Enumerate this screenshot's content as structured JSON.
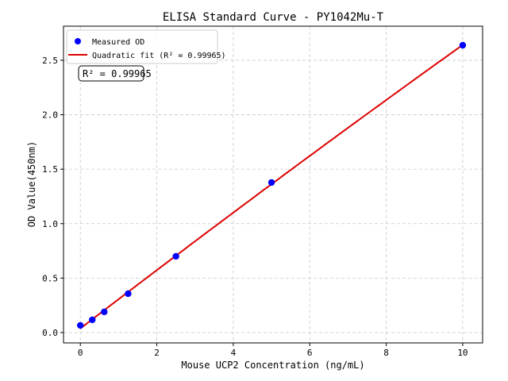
{
  "chart_data": {
    "type": "scatter",
    "title": "ELISA Standard Curve - PY1042Mu-T",
    "xlabel": "Mouse UCP2 Concentration (ng/mL)",
    "ylabel": "OD Value(450nm)",
    "xlim": [
      -0.44,
      10.52
    ],
    "ylim": [
      -0.095,
      2.813
    ],
    "xticks": [
      0,
      2,
      4,
      6,
      8,
      10
    ],
    "xtick_labels": [
      "0",
      "2",
      "4",
      "6",
      "8",
      "10"
    ],
    "yticks": [
      0,
      0.5,
      1.0,
      1.5,
      2.0,
      2.5
    ],
    "ytick_labels": [
      "0.0",
      "0.5",
      "1.0",
      "1.5",
      "2.0",
      "2.5"
    ],
    "grid": true,
    "legend_position": "top-left",
    "series": [
      {
        "name": "Measured OD",
        "kind": "points",
        "color": "#0000ff",
        "x": [
          0,
          0.3125,
          0.625,
          1.25,
          2.5,
          5,
          10
        ],
        "y": [
          0.066,
          0.117,
          0.19,
          0.357,
          0.7,
          1.378,
          2.638
        ]
      },
      {
        "name": "Quadratic fit (R² = 0.99965)",
        "kind": "quadratic-fit",
        "color": "#dd0000"
      }
    ],
    "annotation": "R² = 0.99965"
  }
}
